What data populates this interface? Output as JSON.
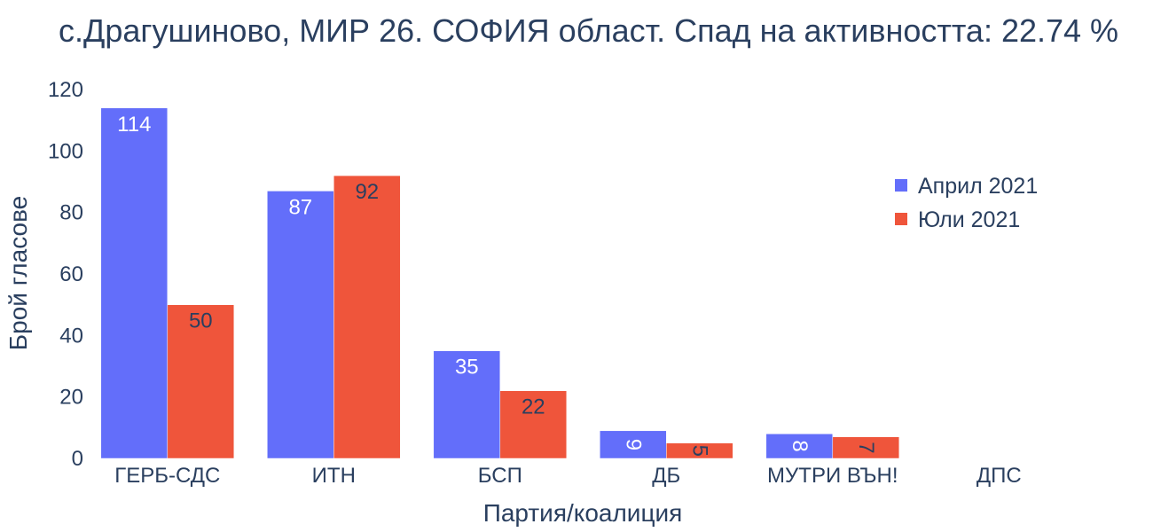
{
  "chart_data": {
    "type": "bar",
    "title": "с.Драгушиново, МИР 26. СОФИЯ област. Спад на активността: 22.74 %",
    "xlabel": "Партия/коалиция",
    "ylabel": "Брой гласове",
    "categories": [
      "ГЕРБ-СДС",
      "ИТН",
      "БСП",
      "ДБ",
      "МУТРИ ВЪН!",
      "ДПС"
    ],
    "series": [
      {
        "name": "Април 2021",
        "color": "#636efa",
        "values": [
          114,
          87,
          35,
          9,
          8,
          0
        ]
      },
      {
        "name": "Юли 2021",
        "color": "#ef553b",
        "values": [
          50,
          92,
          22,
          5,
          7,
          0
        ]
      }
    ],
    "ylim": [
      0,
      120
    ],
    "yticks": [
      0,
      20,
      40,
      60,
      80,
      100,
      120
    ],
    "grid": false,
    "legend": "top-right"
  }
}
